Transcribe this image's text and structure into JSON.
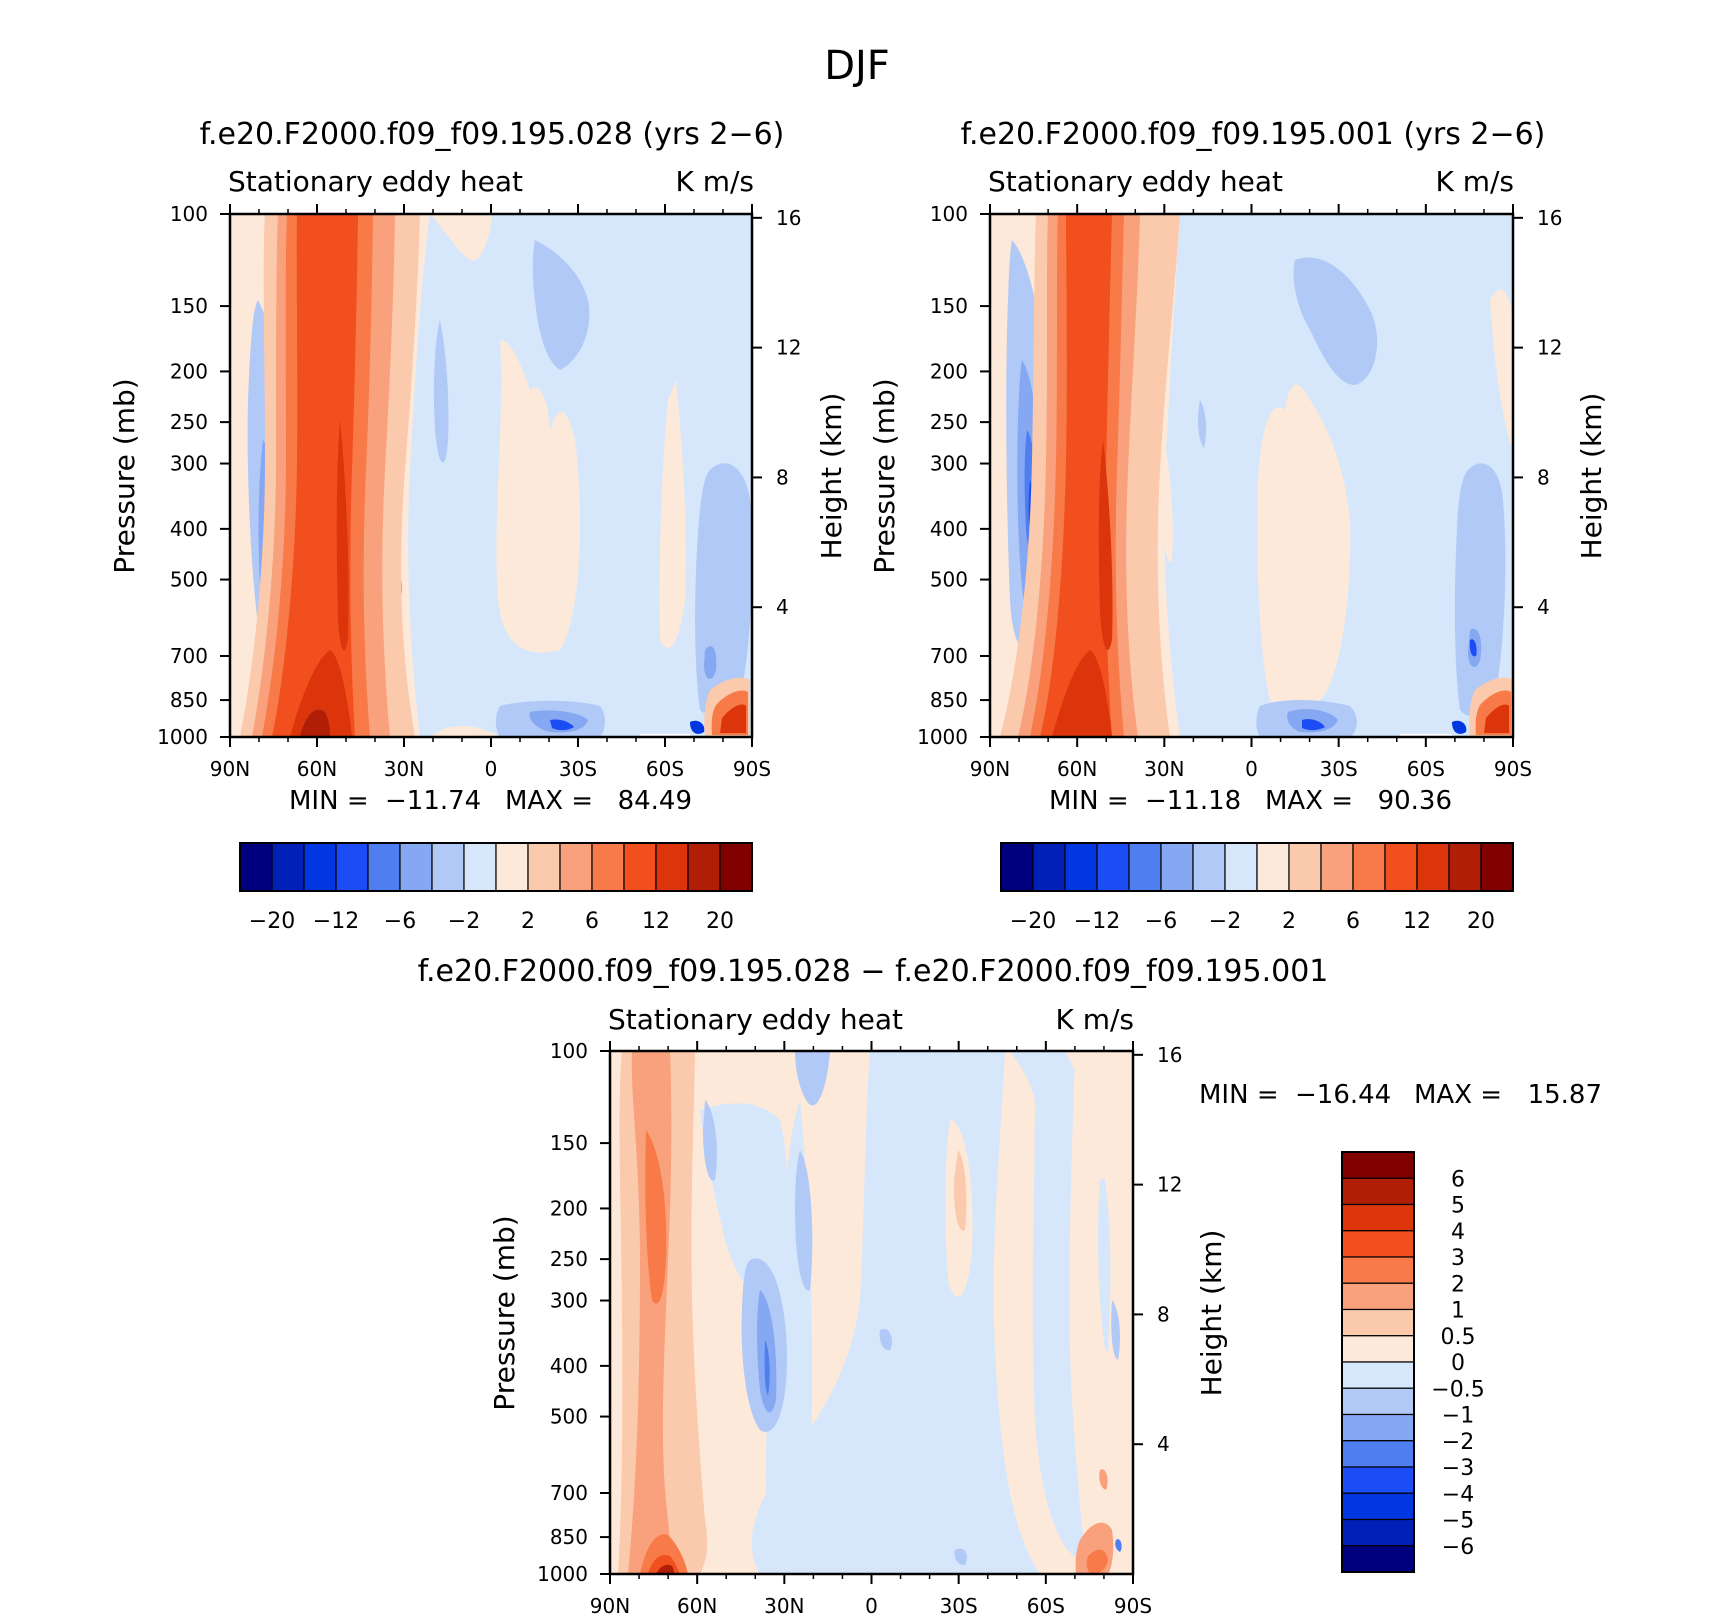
{
  "figure": {
    "title": "DJF",
    "palette": {
      "c1": "#00007f",
      "c2": "#0020b8",
      "c3": "#0037e0",
      "c4": "#1c4cf4",
      "c5": "#4f7ef0",
      "c6": "#86a8f2",
      "c7": "#b1c9f7",
      "c8": "#d6e7fb",
      "w1": "#fde9d9",
      "w2": "#fbc9ab",
      "w3": "#f9a07c",
      "w4": "#f77a48",
      "w5": "#f24f1f",
      "w6": "#dc350c",
      "w7": "#b01e08",
      "w8": "#800000"
    }
  },
  "chart_data": [
    {
      "type": "heatmap",
      "id": "p1",
      "title": "f.e20.F2000.f09_f09.195.028 (yrs 2−6)",
      "variable": "Stationary eddy heat",
      "units": "K m/s",
      "ylabel": "Pressure (mb)",
      "ylabel_right": "Height (km)",
      "x_ticks": [
        "90N",
        "60N",
        "30N",
        "0",
        "30S",
        "60S",
        "90S"
      ],
      "y_ticks": [
        "100",
        "150",
        "200",
        "250",
        "300",
        "400",
        "500",
        "700",
        "850",
        "1000"
      ],
      "right_ticks": [
        "16",
        "12",
        "8",
        "4"
      ],
      "ylim": [
        1000,
        100
      ],
      "xlim": [
        "90N",
        "90S"
      ],
      "min_label": "MIN =",
      "min_value": "−11.74",
      "max_label": "MAX =",
      "max_value": "84.49",
      "colorbar_levels": [
        -20,
        -16,
        -12,
        -9,
        -6,
        -4,
        -2,
        0,
        2,
        4,
        6,
        9,
        12,
        16,
        20
      ],
      "colorbar_labels": [
        "−20",
        "−12",
        "−6",
        "−2",
        "2",
        "6",
        "12",
        "20"
      ]
    },
    {
      "type": "heatmap",
      "id": "p2",
      "title": "f.e20.F2000.f09_f09.195.001 (yrs 2−6)",
      "variable": "Stationary eddy heat",
      "units": "K m/s",
      "ylabel": "Pressure (mb)",
      "ylabel_right": "Height (km)",
      "x_ticks": [
        "90N",
        "60N",
        "30N",
        "0",
        "30S",
        "60S",
        "90S"
      ],
      "y_ticks": [
        "100",
        "150",
        "200",
        "250",
        "300",
        "400",
        "500",
        "700",
        "850",
        "1000"
      ],
      "right_ticks": [
        "16",
        "12",
        "8",
        "4"
      ],
      "ylim": [
        1000,
        100
      ],
      "xlim": [
        "90N",
        "90S"
      ],
      "min_label": "MIN =",
      "min_value": "−11.18",
      "max_label": "MAX =",
      "max_value": "90.36",
      "colorbar_levels": [
        -20,
        -16,
        -12,
        -9,
        -6,
        -4,
        -2,
        0,
        2,
        4,
        6,
        9,
        12,
        16,
        20
      ],
      "colorbar_labels": [
        "−20",
        "−12",
        "−6",
        "−2",
        "2",
        "6",
        "12",
        "20"
      ]
    },
    {
      "type": "heatmap",
      "id": "p3",
      "title": "f.e20.F2000.f09_f09.195.028 − f.e20.F2000.f09_f09.195.001",
      "variable": "Stationary eddy heat",
      "units": "K m/s",
      "ylabel": "Pressure (mb)",
      "ylabel_right": "Height (km)",
      "x_ticks": [
        "90N",
        "60N",
        "30N",
        "0",
        "30S",
        "60S",
        "90S"
      ],
      "y_ticks": [
        "100",
        "150",
        "200",
        "250",
        "300",
        "400",
        "500",
        "700",
        "850",
        "1000"
      ],
      "right_ticks": [
        "16",
        "12",
        "8",
        "4"
      ],
      "ylim": [
        1000,
        100
      ],
      "xlim": [
        "90N",
        "90S"
      ],
      "min_label": "MIN =",
      "min_value": "−16.44",
      "max_label": "MAX =",
      "max_value": "15.87",
      "colorbar_levels": [
        -6,
        -5,
        -4,
        -3,
        -2,
        -1,
        -0.5,
        0,
        0.5,
        1,
        2,
        3,
        4,
        5,
        6
      ],
      "colorbar_labels": [
        "6",
        "5",
        "4",
        "3",
        "2",
        "1",
        "0.5",
        "0",
        "−0.5",
        "−1",
        "−2",
        "−3",
        "−4",
        "−5",
        "−6"
      ]
    }
  ]
}
